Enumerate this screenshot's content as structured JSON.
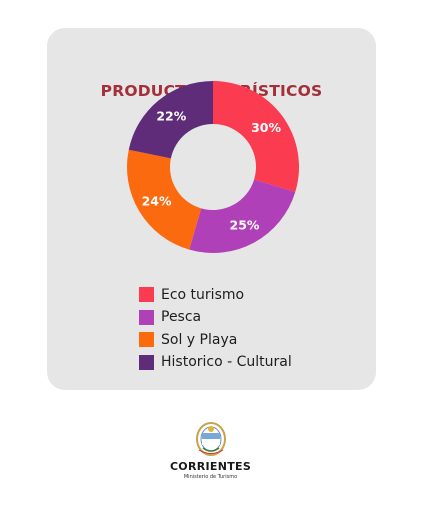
{
  "chart_data": {
    "type": "pie",
    "title": "PRODUCTOS TURÍSTICOS",
    "categories": [
      "Eco turismo",
      "Pesca",
      "Sol y Playa",
      "Historico - Cultural"
    ],
    "values": [
      30,
      25,
      24,
      22
    ],
    "value_labels": [
      "30%",
      "25%",
      "24%",
      "22%"
    ],
    "colors": [
      "#fb3b4f",
      "#b040b8",
      "#fb6a0f",
      "#5e2c78"
    ],
    "donut": true,
    "legend_position": "bottom"
  },
  "footer": {
    "org_name": "CORRIENTES",
    "org_subtitle": "Ministerio de Turismo",
    "seal_text": "CORRIENTES"
  },
  "colors": {
    "card_background": "#e6e6e6",
    "title_color": "#a22f39"
  }
}
